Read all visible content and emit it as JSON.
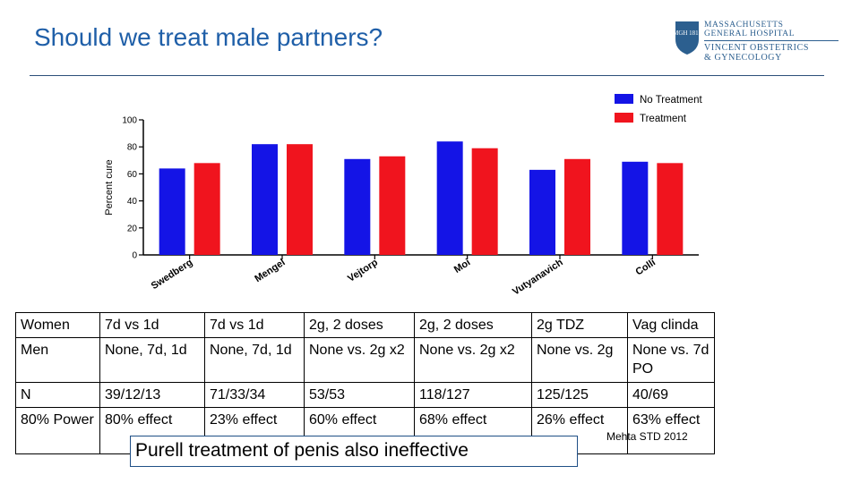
{
  "page": {
    "title": "Should we treat male partners?",
    "citation": "Mehta STD 2012",
    "callout": "Purell treatment of penis also ineffective"
  },
  "logo": {
    "line1": "MASSACHUSETTS",
    "line2": "GENERAL HOSPITAL",
    "line3": "VINCENT OBSTETRICS",
    "line4": "& GYNECOLOGY",
    "shield_text": "MGH 1811"
  },
  "colors": {
    "title": "#1f5fa8",
    "no_treatment": "#1414e6",
    "treatment": "#f0141e"
  },
  "chart_data": {
    "type": "bar",
    "ylabel": "Percent cure",
    "xlabel": "",
    "ylim": [
      0,
      100
    ],
    "yticks": [
      "0",
      "20",
      "40",
      "60",
      "80",
      "100"
    ],
    "categories": [
      "Swedberg",
      "Mengel",
      "Vejtorp",
      "Moi",
      "Vutyanavich",
      "Colli"
    ],
    "series": [
      {
        "name": "No Treatment",
        "color": "#1414e6",
        "values": [
          64,
          82,
          71,
          84,
          63,
          69
        ]
      },
      {
        "name": "Treatment",
        "color": "#f0141e",
        "values": [
          68,
          82,
          73,
          79,
          71,
          68
        ]
      }
    ],
    "legend_position": "top-right",
    "grid": false
  },
  "table": {
    "rows": [
      [
        "Women",
        "7d vs 1d",
        "7d vs 1d",
        "2g, 2 doses",
        "2g, 2 doses",
        "2g TDZ",
        "Vag clinda"
      ],
      [
        "Men",
        "None, 7d, 1d",
        "None, 7d, 1d",
        "None vs. 2g x2",
        "None vs. 2g x2",
        "None vs. 2g",
        "None vs. 7d PO"
      ],
      [
        "N",
        "39/12/13",
        "71/33/34",
        "53/53",
        "118/127",
        "125/125",
        "40/69"
      ],
      [
        "80% Power",
        "80% effect",
        "23% effect",
        "60% effect",
        "68% effect",
        "26% effect",
        "63% effect"
      ]
    ]
  }
}
